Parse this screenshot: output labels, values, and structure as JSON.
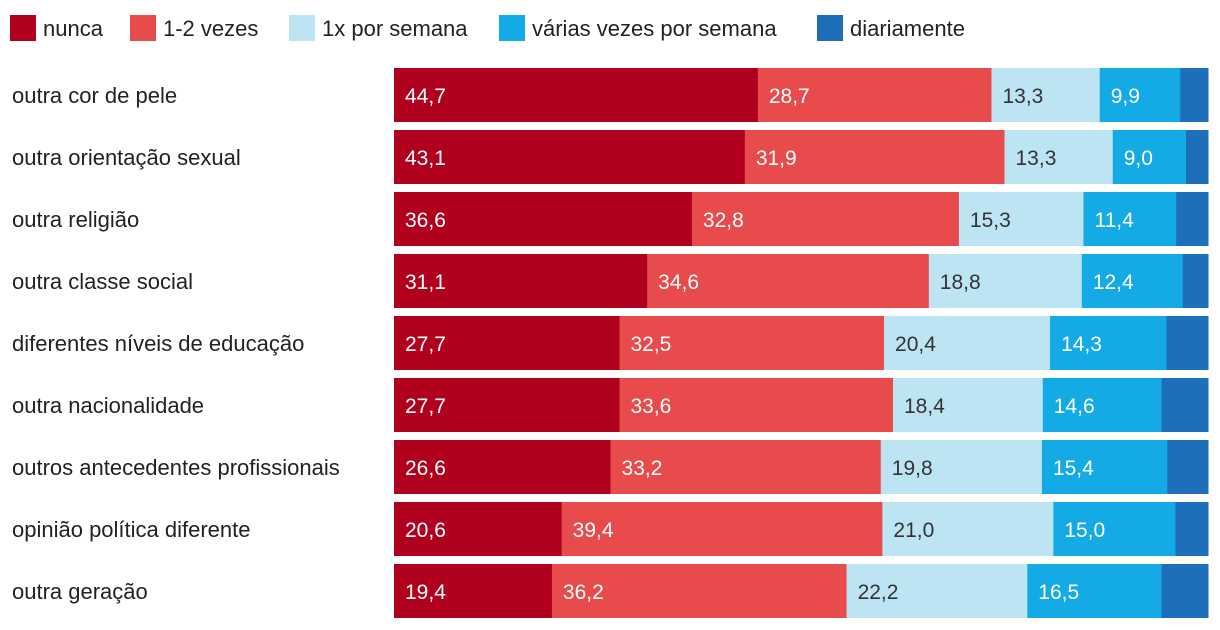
{
  "chart_data": {
    "type": "bar",
    "orientation": "horizontal-stacked-100",
    "legend_position": "top",
    "series": [
      {
        "name": "nunca",
        "color": "#b0001e",
        "label_color": "#ffffff",
        "values": [
          44.7,
          43.1,
          36.6,
          31.1,
          27.7,
          27.7,
          26.6,
          20.6,
          19.4
        ]
      },
      {
        "name": "1-2 vezes",
        "color": "#e84b4b",
        "label_color": "#ffffff",
        "values": [
          28.7,
          31.9,
          32.8,
          34.6,
          32.5,
          33.6,
          33.2,
          39.4,
          36.2
        ]
      },
      {
        "name": "1x por semana",
        "color": "#bde4f2",
        "label_color": "#333333",
        "values": [
          13.3,
          13.3,
          15.3,
          18.8,
          20.4,
          18.4,
          19.8,
          21.0,
          22.2
        ]
      },
      {
        "name": "várias vezes por semana",
        "color": "#14aae6",
        "label_color": "#ffffff",
        "values": [
          9.9,
          9.0,
          11.4,
          12.4,
          14.3,
          14.6,
          15.4,
          15.0,
          16.5
        ]
      },
      {
        "name": "diariamente",
        "color": "#1e6eb9",
        "label_color": "#ffffff",
        "values": [
          3.4,
          2.7,
          3.9,
          3.1,
          5.1,
          5.7,
          5.0,
          4.0,
          5.7
        ]
      }
    ],
    "categories": [
      "outra cor de pele",
      "outra orientação sexual",
      "outra religião",
      "outra classe social",
      "diferentes níveis de educação",
      "outra nacionalidade",
      "outros antecedentes profissionais",
      "opinião política diferente",
      "outra geração"
    ],
    "value_labels": [
      [
        "44,7",
        "28,7",
        "13,3",
        "9,9",
        ""
      ],
      [
        "43,1",
        "31,9",
        "13,3",
        "9,0",
        ""
      ],
      [
        "36,6",
        "32,8",
        "15,3",
        "11,4",
        ""
      ],
      [
        "31,1",
        "34,6",
        "18,8",
        "12,4",
        ""
      ],
      [
        "27,7",
        "32,5",
        "20,4",
        "14,3",
        ""
      ],
      [
        "27,7",
        "33,6",
        "18,4",
        "14,6",
        ""
      ],
      [
        "26,6",
        "33,2",
        "19,8",
        "15,4",
        ""
      ],
      [
        "20,6",
        "39,4",
        "21,0",
        "15,0",
        ""
      ],
      [
        "19,4",
        "36,2",
        "22,2",
        "16,5",
        ""
      ]
    ],
    "xlim": [
      0,
      100
    ],
    "grid": false
  }
}
